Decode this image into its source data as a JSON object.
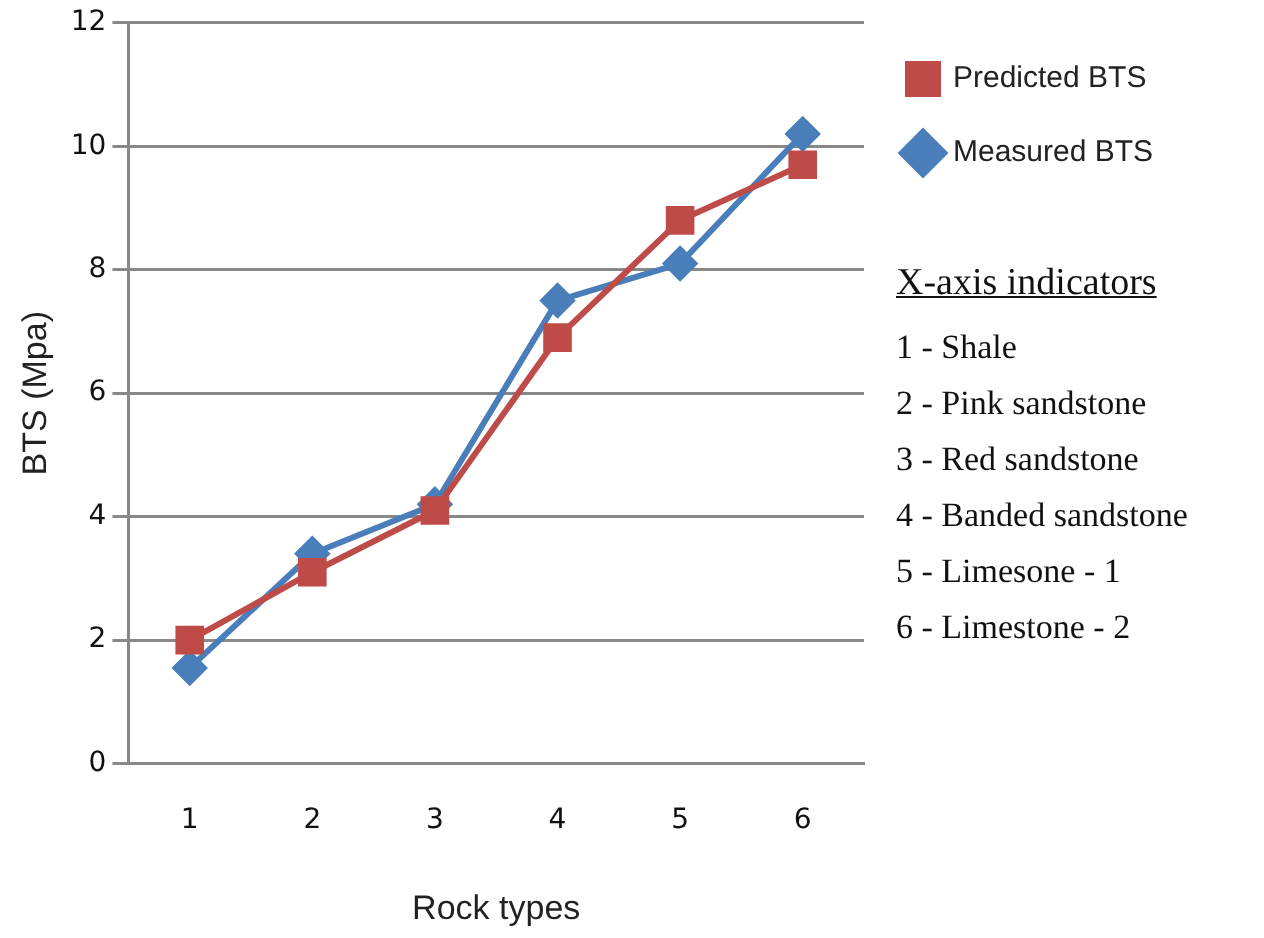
{
  "chart_data": {
    "type": "line",
    "xlabel": "Rock types",
    "ylabel": "BTS (Mpa)",
    "categories": [
      "1",
      "2",
      "3",
      "4",
      "5",
      "6"
    ],
    "series": [
      {
        "name": "Measured BTS",
        "color": "#4a7ebb",
        "marker": "diamond",
        "values": [
          1.55,
          3.4,
          4.2,
          7.5,
          8.1,
          10.2
        ]
      },
      {
        "name": "Predicted BTS",
        "color": "#be4b48",
        "marker": "square",
        "values": [
          2.0,
          3.1,
          4.1,
          6.9,
          8.8,
          9.7
        ]
      }
    ],
    "ylim": [
      0,
      12
    ],
    "yticks": [
      0,
      2,
      4,
      6,
      8,
      10,
      12
    ],
    "grid": "y",
    "legend": "top right",
    "annotations": [
      "X-axis indicators",
      "1 - Shale",
      "2 - Pink sandstone",
      "3 - Red sandstone",
      "4 - Banded sandstone",
      "5 - Limesone - 1",
      "6 - Limestone - 2"
    ]
  }
}
